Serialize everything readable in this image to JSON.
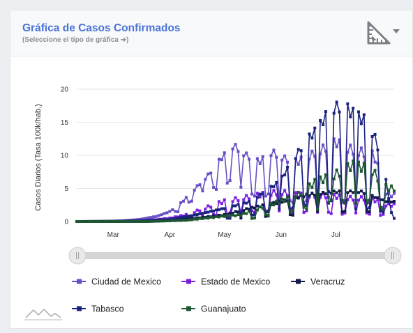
{
  "header": {
    "title": "Gráfica de Casos Confirmados",
    "subtitle": "(Seleccione el tipo de gráfica ➔)"
  },
  "chart_data": {
    "type": "line",
    "title": "",
    "xlabel": "",
    "ylabel": "Casos Diarios (Tasa 100k/hab.)",
    "ylim": [
      0,
      20
    ],
    "yticks": [
      "0",
      "5",
      "10",
      "15",
      "20"
    ],
    "xlim": [
      "2020-02-10",
      "2020-08-02"
    ],
    "xtick_labels": [
      "Mar",
      "Apr",
      "May",
      "Jun",
      "Jul"
    ],
    "xtick_dates": [
      "2020-03-01",
      "2020-04-01",
      "2020-05-01",
      "2020-06-01",
      "2020-07-01"
    ],
    "grid": true,
    "legend_position": "bottom",
    "series": [
      {
        "name": "Ciudad de Mexico",
        "color": "#6a4fc4",
        "points": [
          [
            "2020-02-10",
            0
          ],
          [
            "2020-02-24",
            0
          ],
          [
            "2020-03-05",
            0.1
          ],
          [
            "2020-03-15",
            0.3
          ],
          [
            "2020-03-25",
            0.8
          ],
          [
            "2020-04-01",
            1.5
          ],
          [
            "2020-04-08",
            3
          ],
          [
            "2020-04-15",
            5
          ],
          [
            "2020-04-22",
            7
          ],
          [
            "2020-04-29",
            9.5
          ],
          [
            "2020-05-06",
            11.5
          ],
          [
            "2020-05-13",
            10
          ],
          [
            "2020-05-20",
            9
          ],
          [
            "2020-05-27",
            10.5
          ],
          [
            "2020-06-03",
            9.5
          ],
          [
            "2020-06-10",
            9
          ],
          [
            "2020-06-17",
            10
          ],
          [
            "2020-06-24",
            11
          ],
          [
            "2020-07-01",
            12
          ],
          [
            "2020-07-08",
            11
          ],
          [
            "2020-07-15",
            10.5
          ],
          [
            "2020-07-22",
            10
          ],
          [
            "2020-07-29",
            4
          ]
        ],
        "dips": [
          [
            "2020-04-05",
            1.5
          ],
          [
            "2020-04-12",
            3
          ],
          [
            "2020-04-19",
            4.5
          ],
          [
            "2020-04-26",
            5
          ],
          [
            "2020-05-03",
            6
          ],
          [
            "2020-05-10",
            5
          ],
          [
            "2020-05-17",
            4
          ],
          [
            "2020-05-24",
            4
          ],
          [
            "2020-05-31",
            3
          ],
          [
            "2020-06-07",
            3
          ],
          [
            "2020-06-14",
            3
          ],
          [
            "2020-06-21",
            3
          ],
          [
            "2020-06-28",
            3.5
          ],
          [
            "2020-07-05",
            3
          ],
          [
            "2020-07-12",
            3
          ],
          [
            "2020-07-19",
            3
          ],
          [
            "2020-07-26",
            2
          ]
        ]
      },
      {
        "name": "Estado de Mexico",
        "color": "#7a1ee0",
        "points": [
          [
            "2020-02-10",
            0
          ],
          [
            "2020-03-05",
            0
          ],
          [
            "2020-03-15",
            0.1
          ],
          [
            "2020-03-25",
            0.3
          ],
          [
            "2020-04-01",
            0.5
          ],
          [
            "2020-04-10",
            1
          ],
          [
            "2020-04-20",
            2
          ],
          [
            "2020-04-30",
            3
          ],
          [
            "2020-05-10",
            3.5
          ],
          [
            "2020-05-20",
            4
          ],
          [
            "2020-05-31",
            4.5
          ],
          [
            "2020-06-10",
            4
          ],
          [
            "2020-06-20",
            4
          ],
          [
            "2020-07-01",
            3.8
          ],
          [
            "2020-07-10",
            3.5
          ],
          [
            "2020-07-20",
            3.5
          ],
          [
            "2020-07-29",
            2.5
          ]
        ],
        "dips": [
          [
            "2020-04-12",
            0.5
          ],
          [
            "2020-04-19",
            0.8
          ],
          [
            "2020-04-26",
            1
          ],
          [
            "2020-05-03",
            1.2
          ],
          [
            "2020-05-10",
            1.2
          ],
          [
            "2020-05-17",
            1.5
          ],
          [
            "2020-05-24",
            1.5
          ],
          [
            "2020-05-31",
            1.5
          ],
          [
            "2020-06-07",
            1.5
          ],
          [
            "2020-06-14",
            1.5
          ],
          [
            "2020-06-21",
            1.3
          ],
          [
            "2020-06-28",
            1.3
          ],
          [
            "2020-07-05",
            1.2
          ],
          [
            "2020-07-12",
            1.2
          ],
          [
            "2020-07-19",
            1.2
          ],
          [
            "2020-07-26",
            1
          ]
        ]
      },
      {
        "name": "Veracruz",
        "color": "#101a4a",
        "points": [
          [
            "2020-02-10",
            0
          ],
          [
            "2020-03-15",
            0
          ],
          [
            "2020-04-01",
            0.2
          ],
          [
            "2020-04-15",
            0.5
          ],
          [
            "2020-05-01",
            1
          ],
          [
            "2020-05-15",
            2
          ],
          [
            "2020-06-01",
            3
          ],
          [
            "2020-06-15",
            4
          ],
          [
            "2020-07-01",
            4.5
          ],
          [
            "2020-07-15",
            4.5
          ],
          [
            "2020-07-29",
            3
          ]
        ],
        "dips": [
          [
            "2020-05-10",
            0.5
          ],
          [
            "2020-05-24",
            0.8
          ],
          [
            "2020-06-07",
            1
          ],
          [
            "2020-06-21",
            1.5
          ],
          [
            "2020-07-05",
            1.5
          ],
          [
            "2020-07-19",
            1.5
          ]
        ]
      },
      {
        "name": "Tabasco",
        "color": "#1a237e",
        "points": [
          [
            "2020-02-10",
            0
          ],
          [
            "2020-03-15",
            0.1
          ],
          [
            "2020-04-01",
            0.3
          ],
          [
            "2020-04-15",
            1
          ],
          [
            "2020-05-01",
            2
          ],
          [
            "2020-05-15",
            3
          ],
          [
            "2020-05-31",
            6
          ],
          [
            "2020-06-07",
            9
          ],
          [
            "2020-06-14",
            12
          ],
          [
            "2020-06-21",
            14
          ],
          [
            "2020-06-28",
            17
          ],
          [
            "2020-07-05",
            17.5
          ],
          [
            "2020-07-12",
            16
          ],
          [
            "2020-07-19",
            15
          ],
          [
            "2020-07-26",
            10
          ],
          [
            "2020-08-01",
            0.5
          ]
        ],
        "dips": [
          [
            "2020-05-03",
            0.5
          ],
          [
            "2020-05-10",
            1
          ],
          [
            "2020-05-17",
            1
          ],
          [
            "2020-05-24",
            1.5
          ],
          [
            "2020-05-31",
            2
          ],
          [
            "2020-06-07",
            2
          ],
          [
            "2020-06-14",
            2.5
          ],
          [
            "2020-06-21",
            2
          ],
          [
            "2020-06-28",
            3
          ],
          [
            "2020-07-05",
            3
          ],
          [
            "2020-07-12",
            2
          ],
          [
            "2020-07-19",
            2
          ],
          [
            "2020-07-26",
            1.5
          ]
        ]
      },
      {
        "name": "Guanajuato",
        "color": "#1e5631",
        "points": [
          [
            "2020-02-10",
            0
          ],
          [
            "2020-03-20",
            0
          ],
          [
            "2020-04-10",
            0.2
          ],
          [
            "2020-04-30",
            0.8
          ],
          [
            "2020-05-10",
            1
          ],
          [
            "2020-05-20",
            2
          ],
          [
            "2020-05-31",
            3
          ],
          [
            "2020-06-10",
            4
          ],
          [
            "2020-06-20",
            6
          ],
          [
            "2020-06-30",
            7
          ],
          [
            "2020-07-10",
            8.5
          ],
          [
            "2020-07-20",
            8
          ],
          [
            "2020-07-29",
            5
          ]
        ],
        "dips": [
          [
            "2020-05-17",
            0.5
          ],
          [
            "2020-05-24",
            1
          ],
          [
            "2020-06-07",
            1.5
          ],
          [
            "2020-06-14",
            2
          ],
          [
            "2020-06-21",
            2
          ],
          [
            "2020-06-28",
            3
          ],
          [
            "2020-07-05",
            3
          ],
          [
            "2020-07-12",
            3
          ],
          [
            "2020-07-19",
            3
          ],
          [
            "2020-07-26",
            2
          ]
        ]
      }
    ]
  },
  "icons": {
    "chart_type": "ruler-chart-icon",
    "dropdown": "caret-down-icon",
    "watermark": "mountain-logo-icon"
  }
}
